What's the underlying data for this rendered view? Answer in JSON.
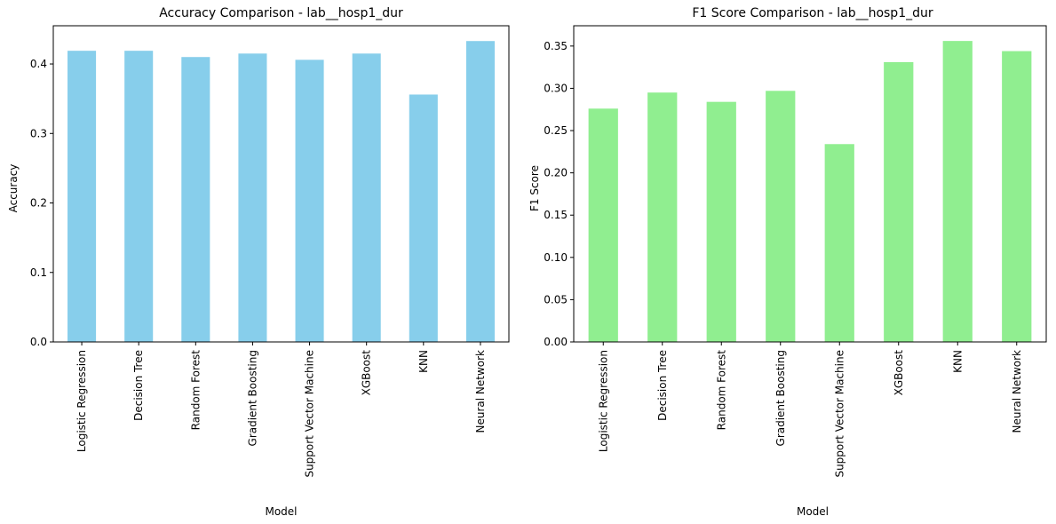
{
  "chart_data": [
    {
      "type": "bar",
      "title": "Accuracy Comparison - lab__hosp1_dur",
      "xlabel": "Model",
      "ylabel": "Accuracy",
      "categories": [
        "Logistic Regression",
        "Decision Tree",
        "Random Forest",
        "Gradient Boosting",
        "Support Vector Machine",
        "XGBoost",
        "KNN",
        "Neural Network"
      ],
      "values": [
        0.419,
        0.419,
        0.41,
        0.415,
        0.406,
        0.415,
        0.356,
        0.433
      ],
      "ylim": [
        0,
        0.455
      ],
      "yticks": [
        0.0,
        0.1,
        0.2,
        0.3,
        0.4
      ],
      "ytick_labels": [
        "0.0",
        "0.1",
        "0.2",
        "0.3",
        "0.4"
      ],
      "color": "#87CEEB",
      "grid": false
    },
    {
      "type": "bar",
      "title": "F1 Score Comparison - lab__hosp1_dur",
      "xlabel": "Model",
      "ylabel": "F1 Score",
      "categories": [
        "Logistic Regression",
        "Decision Tree",
        "Random Forest",
        "Gradient Boosting",
        "Support Vector Machine",
        "XGBoost",
        "KNN",
        "Neural Network"
      ],
      "values": [
        0.276,
        0.295,
        0.284,
        0.297,
        0.234,
        0.331,
        0.356,
        0.344
      ],
      "ylim": [
        0,
        0.374
      ],
      "yticks": [
        0.0,
        0.05,
        0.1,
        0.15,
        0.2,
        0.25,
        0.3,
        0.35
      ],
      "ytick_labels": [
        "0.00",
        "0.05",
        "0.10",
        "0.15",
        "0.20",
        "0.25",
        "0.30",
        "0.35"
      ],
      "color": "#90EE90",
      "grid": false
    }
  ]
}
